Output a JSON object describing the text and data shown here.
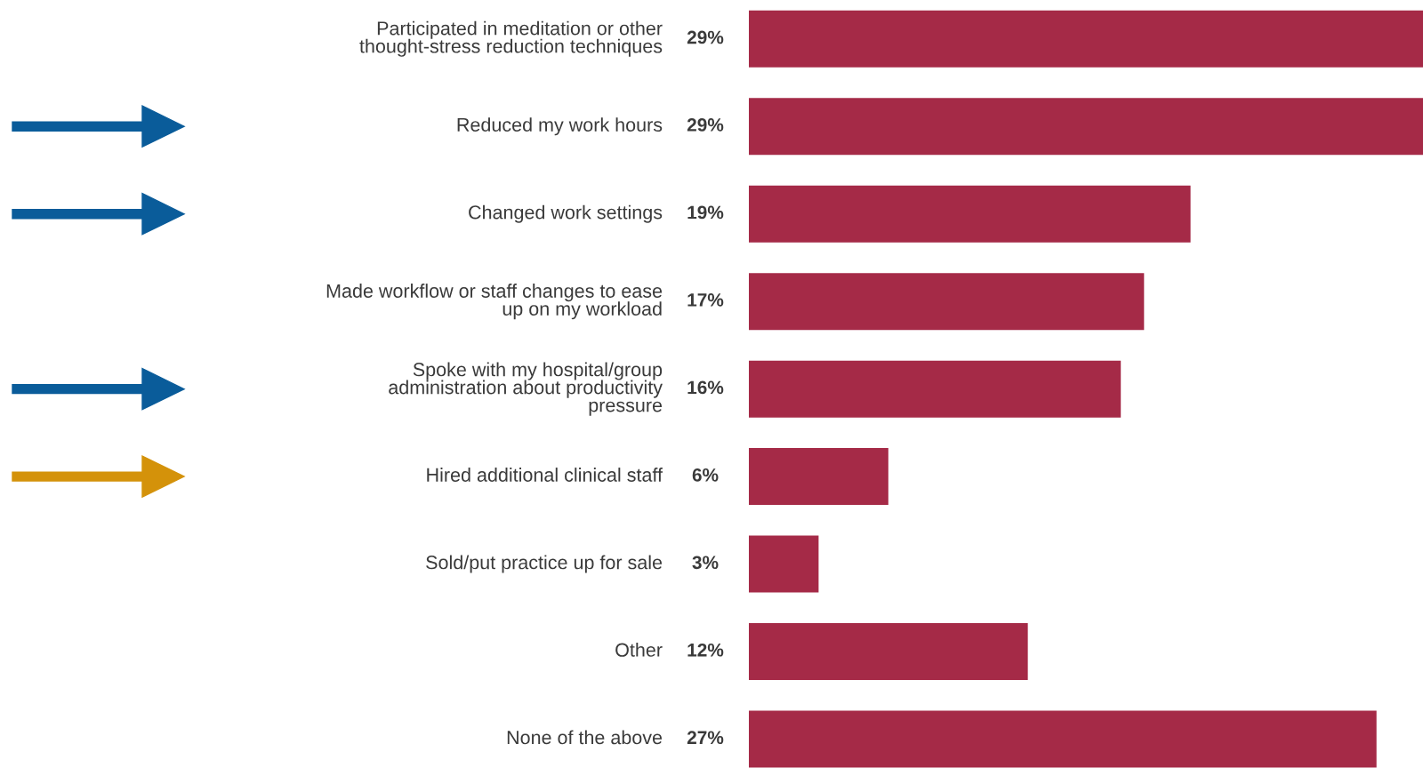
{
  "chart_data": {
    "type": "bar",
    "orientation": "horizontal",
    "categories": [
      "Participated in meditation or other\nthought-stress reduction techniques",
      "Reduced my work hours",
      "Changed work settings",
      "Made workflow or staff changes to ease\nup on my workload",
      "Spoke with my hospital/group\nadministration about productivity\npressure",
      "Hired additional clinical staff",
      "Sold/put practice up for sale",
      "Other",
      "None of the above"
    ],
    "values": [
      29,
      29,
      19,
      17,
      16,
      6,
      3,
      12,
      27
    ],
    "value_labels": [
      "29%",
      "29%",
      "19%",
      "17%",
      "16%",
      "6%",
      "3%",
      "12%",
      "27%"
    ],
    "color": "#a52a47"
  }
}
